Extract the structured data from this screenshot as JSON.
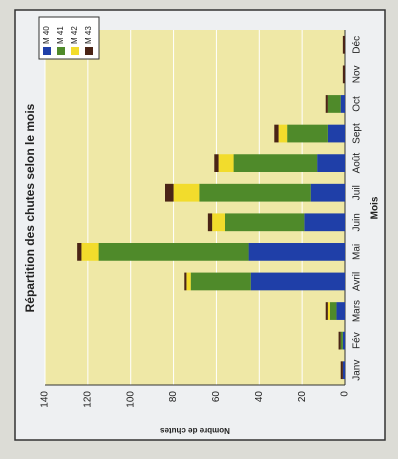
{
  "chart_data": {
    "type": "stacked_bar",
    "title": "Répartition des chutes selon le mois",
    "x_label": "Mois",
    "y_label": "Nombre de chutes",
    "categories": [
      "Janv",
      "Fév",
      "Mars",
      "Avril",
      "Mai",
      "Juin",
      "Juil",
      "Août",
      "Sept",
      "Oct",
      "Nov",
      "Déc"
    ],
    "series": [
      {
        "name": "M 40",
        "color": "#1f3fa8",
        "values": [
          1,
          1,
          4,
          44,
          45,
          19,
          16,
          13,
          8,
          2,
          0,
          0
        ]
      },
      {
        "name": "M 41",
        "color": "#4f8a2a",
        "values": [
          0,
          1,
          3,
          28,
          70,
          37,
          52,
          39,
          19,
          6,
          0,
          0
        ]
      },
      {
        "name": "M 42",
        "color": "#f2dc2c",
        "values": [
          0,
          0,
          1,
          2,
          8,
          6,
          12,
          7,
          4,
          0,
          0,
          0
        ]
      },
      {
        "name": "M 43",
        "color": "#4a2416",
        "values": [
          1,
          1,
          1,
          1,
          2,
          2,
          4,
          2,
          2,
          1,
          1,
          1
        ]
      }
    ],
    "ylim": [
      0,
      140
    ],
    "yticks": [
      0,
      20,
      40,
      60,
      80,
      100,
      120,
      140
    ],
    "grid": true,
    "legend": "top-right"
  }
}
